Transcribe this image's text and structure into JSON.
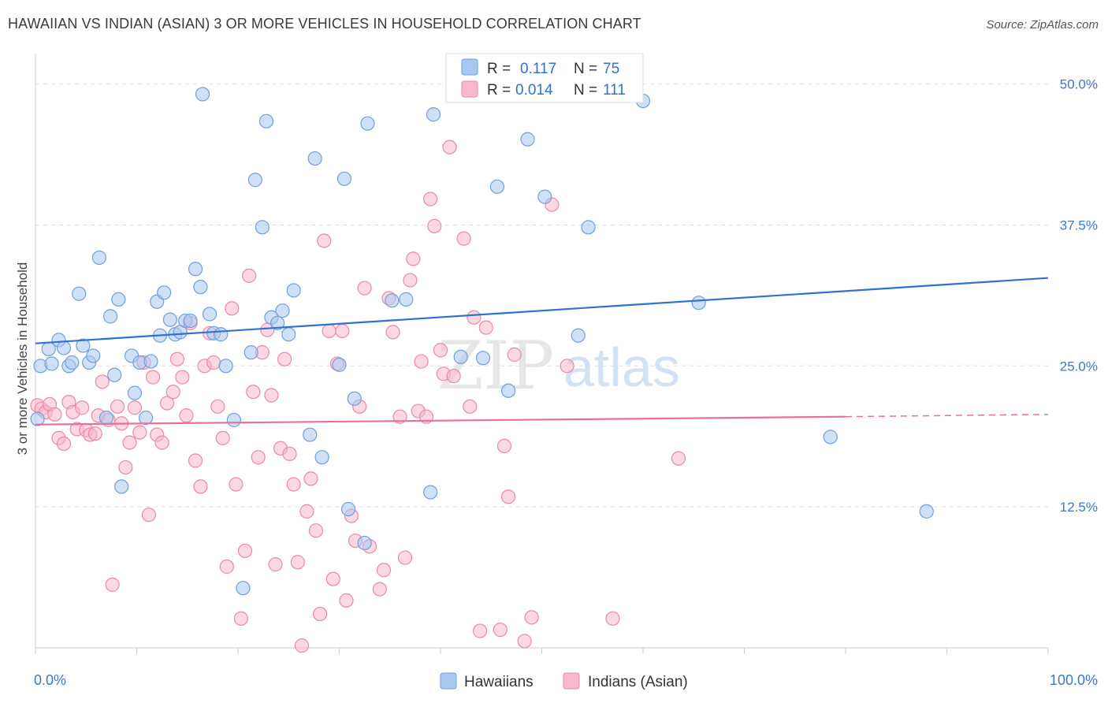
{
  "title": "HAWAIIAN VS INDIAN (ASIAN) 3 OR MORE VEHICLES IN HOUSEHOLD CORRELATION CHART",
  "source": "Source: ZipAtlas.com",
  "watermark": {
    "zip": "ZIP",
    "atlas": "atlas"
  },
  "colors": {
    "blue_fill": "#a9c8f0",
    "blue_stroke": "#6f9fdc",
    "blue_line": "#2f72d0",
    "pink_fill": "#f7b8cb",
    "pink_stroke": "#e98aa8",
    "pink_line": "#e8709a",
    "tick_text": "#3b78cc",
    "grid": "#dddddd"
  },
  "legend": {
    "rows": [
      {
        "r_label": "R =",
        "r_value": "0.117",
        "n_label": "N =",
        "n_value": "75",
        "series": "blue"
      },
      {
        "r_label": "R =",
        "r_value": "0.014",
        "n_label": "N =",
        "n_value": "111",
        "series": "pink"
      }
    ]
  },
  "chart_data": {
    "type": "scatter",
    "title": "HAWAIIAN VS INDIAN (ASIAN) 3 OR MORE VEHICLES IN HOUSEHOLD CORRELATION CHART",
    "xlabel": "",
    "ylabel": "3 or more Vehicles in Household",
    "xlim": [
      0,
      100
    ],
    "ylim": [
      0,
      52
    ],
    "x_tick_labels": [
      "0.0%",
      "100.0%"
    ],
    "y_ticks": [
      12.5,
      25.0,
      37.5,
      50.0
    ],
    "y_tick_labels": [
      "12.5%",
      "25.0%",
      "37.5%",
      "50.0%"
    ],
    "grid": true,
    "legend_position": "top-center",
    "series": [
      {
        "name": "Hawaiians",
        "color": "#6f9fdc",
        "trend": {
          "x0": 0,
          "y0": 27.0,
          "x1": 100,
          "y1": 32.8
        },
        "points": [
          [
            0.2,
            20.3
          ],
          [
            0.5,
            25.0
          ],
          [
            1.3,
            26.5
          ],
          [
            1.6,
            25.2
          ],
          [
            2.3,
            27.3
          ],
          [
            2.8,
            26.6
          ],
          [
            3.3,
            25.0
          ],
          [
            3.6,
            25.3
          ],
          [
            4.3,
            31.4
          ],
          [
            4.7,
            26.8
          ],
          [
            5.3,
            25.3
          ],
          [
            5.7,
            25.9
          ],
          [
            6.3,
            34.6
          ],
          [
            7.0,
            20.4
          ],
          [
            7.4,
            29.4
          ],
          [
            7.8,
            24.2
          ],
          [
            8.2,
            30.9
          ],
          [
            8.5,
            14.3
          ],
          [
            9.5,
            25.9
          ],
          [
            9.8,
            22.6
          ],
          [
            10.3,
            25.3
          ],
          [
            10.9,
            20.4
          ],
          [
            11.4,
            25.4
          ],
          [
            12.0,
            30.7
          ],
          [
            12.3,
            27.7
          ],
          [
            12.7,
            31.5
          ],
          [
            13.3,
            29.1
          ],
          [
            13.8,
            27.8
          ],
          [
            14.3,
            28.0
          ],
          [
            14.8,
            29.0
          ],
          [
            15.3,
            29.0
          ],
          [
            15.8,
            33.6
          ],
          [
            16.3,
            32.0
          ],
          [
            16.5,
            49.1
          ],
          [
            17.2,
            29.6
          ],
          [
            17.6,
            27.9
          ],
          [
            18.3,
            27.8
          ],
          [
            18.8,
            25.0
          ],
          [
            19.6,
            20.2
          ],
          [
            20.5,
            5.3
          ],
          [
            21.3,
            26.2
          ],
          [
            21.7,
            41.5
          ],
          [
            22.4,
            37.3
          ],
          [
            22.8,
            46.7
          ],
          [
            23.3,
            29.3
          ],
          [
            23.9,
            28.8
          ],
          [
            24.4,
            29.9
          ],
          [
            25.0,
            27.8
          ],
          [
            25.5,
            31.7
          ],
          [
            27.1,
            18.9
          ],
          [
            27.6,
            43.4
          ],
          [
            28.3,
            16.9
          ],
          [
            30.0,
            25.1
          ],
          [
            30.5,
            41.6
          ],
          [
            30.9,
            12.3
          ],
          [
            31.5,
            22.1
          ],
          [
            32.5,
            9.3
          ],
          [
            32.8,
            46.5
          ],
          [
            35.2,
            30.8
          ],
          [
            36.6,
            30.9
          ],
          [
            39.0,
            13.8
          ],
          [
            39.3,
            47.3
          ],
          [
            42.0,
            25.8
          ],
          [
            44.2,
            25.7
          ],
          [
            45.6,
            40.9
          ],
          [
            46.7,
            22.8
          ],
          [
            48.6,
            45.1
          ],
          [
            50.3,
            40.0
          ],
          [
            53.6,
            27.7
          ],
          [
            54.6,
            37.3
          ],
          [
            60.0,
            48.5
          ],
          [
            65.5,
            30.6
          ],
          [
            78.5,
            18.7
          ],
          [
            88.0,
            12.1
          ]
        ]
      },
      {
        "name": "Indians (Asian)",
        "color": "#e98aa8",
        "trend": {
          "x0": 0,
          "y0": 19.8,
          "x1": 80,
          "y1": 20.5,
          "dash_to_x": 100,
          "dash_to_y": 20.7
        },
        "points": [
          [
            0.2,
            21.5
          ],
          [
            0.6,
            21.2
          ],
          [
            1.0,
            20.9
          ],
          [
            1.4,
            21.6
          ],
          [
            1.9,
            20.7
          ],
          [
            2.3,
            18.6
          ],
          [
            2.8,
            18.1
          ],
          [
            3.3,
            21.8
          ],
          [
            3.7,
            20.9
          ],
          [
            4.1,
            19.4
          ],
          [
            4.6,
            21.3
          ],
          [
            5.0,
            19.3
          ],
          [
            5.4,
            18.9
          ],
          [
            5.9,
            19.0
          ],
          [
            6.2,
            20.6
          ],
          [
            6.6,
            23.6
          ],
          [
            7.2,
            20.2
          ],
          [
            7.6,
            5.6
          ],
          [
            8.1,
            21.4
          ],
          [
            8.5,
            19.9
          ],
          [
            8.9,
            16.0
          ],
          [
            9.3,
            18.2
          ],
          [
            9.8,
            21.3
          ],
          [
            10.3,
            19.1
          ],
          [
            10.7,
            25.3
          ],
          [
            11.2,
            11.8
          ],
          [
            11.6,
            24.0
          ],
          [
            12.0,
            18.9
          ],
          [
            12.5,
            18.2
          ],
          [
            13.0,
            21.7
          ],
          [
            13.6,
            22.7
          ],
          [
            14.0,
            25.6
          ],
          [
            14.5,
            24.0
          ],
          [
            14.9,
            20.6
          ],
          [
            15.3,
            28.8
          ],
          [
            15.8,
            16.6
          ],
          [
            16.3,
            14.3
          ],
          [
            16.7,
            25.0
          ],
          [
            17.2,
            27.9
          ],
          [
            17.6,
            25.3
          ],
          [
            18.0,
            21.4
          ],
          [
            18.5,
            18.6
          ],
          [
            18.9,
            7.2
          ],
          [
            19.4,
            30.1
          ],
          [
            19.8,
            14.5
          ],
          [
            20.3,
            2.6
          ],
          [
            20.7,
            8.6
          ],
          [
            21.1,
            33.0
          ],
          [
            21.5,
            22.7
          ],
          [
            22.0,
            16.9
          ],
          [
            22.4,
            26.2
          ],
          [
            22.9,
            28.2
          ],
          [
            23.3,
            22.4
          ],
          [
            23.7,
            7.4
          ],
          [
            24.2,
            17.7
          ],
          [
            24.6,
            25.6
          ],
          [
            25.1,
            17.2
          ],
          [
            25.5,
            14.5
          ],
          [
            25.9,
            7.6
          ],
          [
            26.3,
            0.2
          ],
          [
            26.8,
            12.1
          ],
          [
            27.2,
            15.0
          ],
          [
            27.7,
            10.4
          ],
          [
            28.1,
            3.0
          ],
          [
            28.5,
            36.1
          ],
          [
            29.0,
            28.1
          ],
          [
            29.4,
            6.1
          ],
          [
            29.8,
            25.2
          ],
          [
            30.3,
            28.1
          ],
          [
            30.7,
            4.2
          ],
          [
            31.2,
            11.7
          ],
          [
            31.6,
            9.5
          ],
          [
            32.0,
            21.4
          ],
          [
            32.5,
            31.9
          ],
          [
            33.0,
            9.0
          ],
          [
            34.0,
            5.2
          ],
          [
            34.4,
            6.9
          ],
          [
            34.9,
            31.0
          ],
          [
            35.3,
            28.0
          ],
          [
            36.0,
            20.5
          ],
          [
            36.5,
            8.0
          ],
          [
            37.0,
            32.6
          ],
          [
            37.3,
            34.5
          ],
          [
            37.8,
            21.0
          ],
          [
            38.1,
            25.4
          ],
          [
            38.6,
            20.5
          ],
          [
            39.0,
            39.8
          ],
          [
            39.4,
            37.4
          ],
          [
            40.0,
            26.4
          ],
          [
            40.3,
            24.3
          ],
          [
            40.9,
            44.4
          ],
          [
            41.3,
            24.1
          ],
          [
            42.3,
            36.3
          ],
          [
            42.9,
            21.4
          ],
          [
            43.3,
            29.3
          ],
          [
            43.9,
            1.5
          ],
          [
            44.5,
            28.4
          ],
          [
            45.9,
            1.6
          ],
          [
            46.3,
            17.9
          ],
          [
            46.7,
            13.4
          ],
          [
            47.3,
            26.0
          ],
          [
            48.3,
            0.6
          ],
          [
            49.0,
            2.7
          ],
          [
            51.0,
            39.3
          ],
          [
            52.5,
            25.0
          ],
          [
            57.0,
            2.6
          ],
          [
            63.5,
            16.8
          ]
        ]
      }
    ]
  },
  "bottom_legend": [
    {
      "label": "Hawaiians",
      "series": "blue"
    },
    {
      "label": "Indians (Asian)",
      "series": "pink"
    }
  ]
}
